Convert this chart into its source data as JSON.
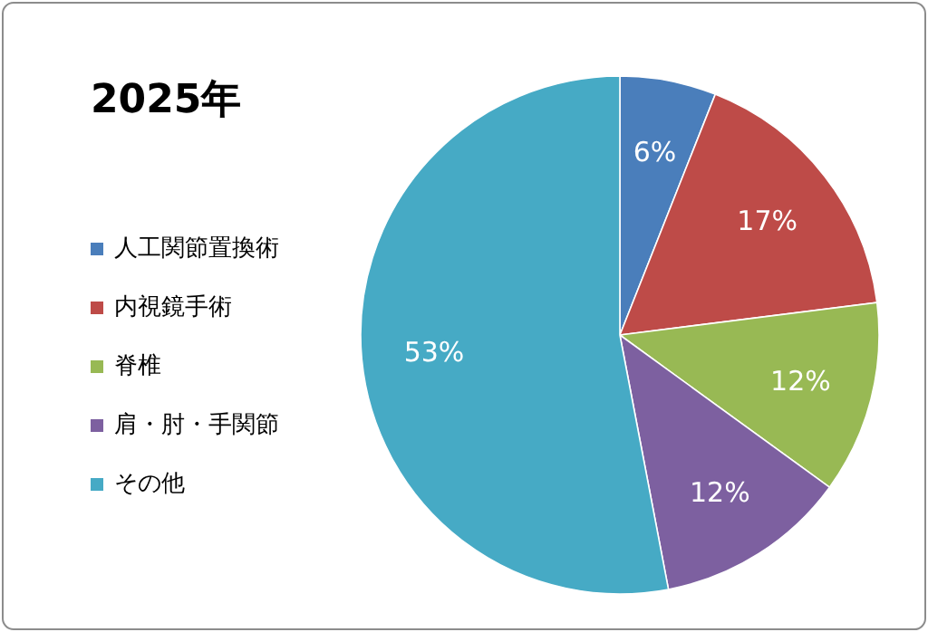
{
  "chart_data": {
    "type": "pie",
    "title": "2025年",
    "categories": [
      "人工関節置換術",
      "内視鏡手術",
      "脊椎",
      "肩・肘・手関節",
      "その他"
    ],
    "values": [
      6,
      17,
      12,
      12,
      53
    ],
    "value_labels": [
      "6%",
      "17%",
      "12%",
      "12%",
      "53%"
    ],
    "colors": [
      "#4a7ebb",
      "#be4b48",
      "#98b954",
      "#7d60a0",
      "#46aac5"
    ],
    "legend": "left"
  }
}
